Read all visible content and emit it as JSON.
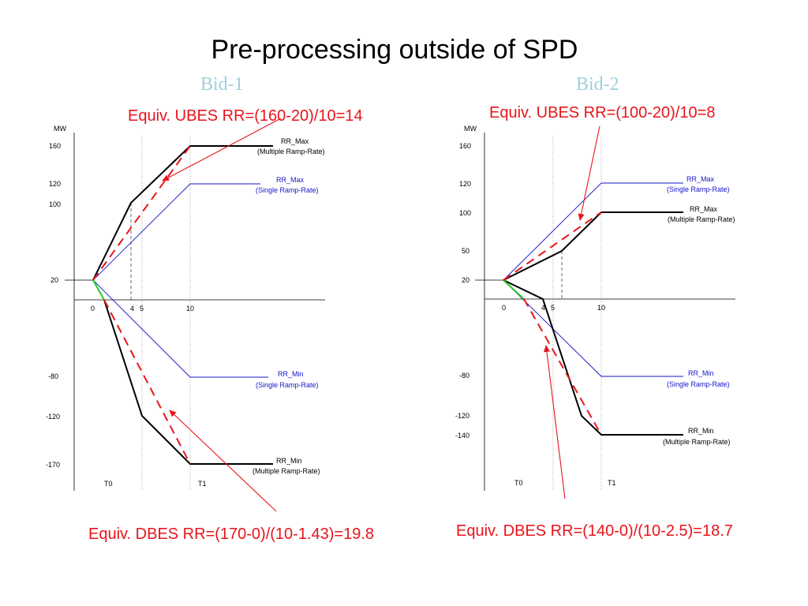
{
  "slide": {
    "title": "Pre-processing outside of SPD",
    "bid1_label": "Bid-1",
    "bid2_label": "Bid-2",
    "bid1_ubes": "Equiv. UBES RR=(160-20)/10=14",
    "bid1_dbes": "Equiv. DBES RR=(170-0)/(10-1.43)=19.8",
    "bid2_ubes": "Equiv. UBES RR=(100-20)/10=8",
    "bid2_dbes": "Equiv. DBES RR=(140-0)/(10-2.5)=18.7"
  },
  "bid1": {
    "unit": "MW",
    "y_ticks": [
      "160",
      "120",
      "100",
      "20",
      "-80",
      "-120",
      "-170"
    ],
    "x_ticks": [
      "0",
      "4",
      "5",
      "10"
    ],
    "t0": "T0",
    "t1": "T1",
    "rr_max_multi": [
      "RR_Max",
      "(Multiple Ramp-Rate)"
    ],
    "rr_max_single": [
      "RR_Max",
      "(Single Ramp-Rate)"
    ],
    "rr_min_single": [
      "RR_Min",
      "(Single Ramp-Rate)"
    ],
    "rr_min_multi": [
      "RR_Min",
      "(Multiple Ramp-Rate)"
    ]
  },
  "bid2": {
    "unit": "MW",
    "y_ticks": [
      "160",
      "120",
      "100",
      "50",
      "20",
      "-80",
      "-120",
      "-140"
    ],
    "x_ticks": [
      "0",
      "4",
      "5",
      "10"
    ],
    "t0": "T0",
    "t1": "T1",
    "rr_max_single": [
      "RR_Max",
      "(Single Ramp-Rate)"
    ],
    "rr_max_multi": [
      "RR_Max",
      "(Multiple Ramp-Rate)"
    ],
    "rr_min_single": [
      "RR_Min",
      "(Single Ramp-Rate)"
    ],
    "rr_min_multi": [
      "RR_Min",
      "(Multiple Ramp-Rate)"
    ]
  },
  "colors": {
    "multi_ramp": "#000000",
    "single_ramp": "#1414c8",
    "equivalent": "#e8141b",
    "annotation_arrow": "#e8141b",
    "bid_label": "#9fd0de",
    "green_segment": "#22cc22"
  }
}
